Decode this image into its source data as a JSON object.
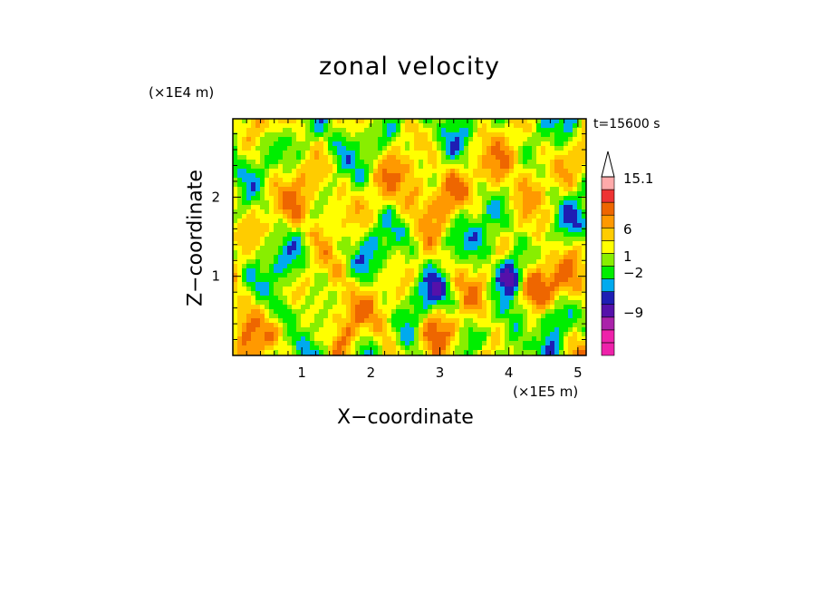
{
  "chart_data": {
    "type": "heatmap",
    "title": "zonal velocity",
    "xlabel": "X−coordinate",
    "ylabel": "Z−coordinate",
    "x_unit": "(×1E5 m)",
    "y_unit": "(×1E4 m)",
    "time_label": "t=15600 s",
    "xlim": [
      0,
      5.12
    ],
    "ylim": [
      0,
      2.99
    ],
    "x_ticks": [
      1,
      2,
      3,
      4,
      5
    ],
    "y_ticks": [
      1,
      2
    ],
    "colorbar": {
      "levels": [
        {
          "color": "#ee22aa"
        },
        {
          "color": "#ee22aa"
        },
        {
          "color": "#aa22aa"
        },
        {
          "color": "#5511aa"
        },
        {
          "color": "#1e1eb4"
        },
        {
          "color": "#00aaee"
        },
        {
          "color": "#00ee00"
        },
        {
          "color": "#88ee00"
        },
        {
          "color": "#ffff00"
        },
        {
          "color": "#ffcc00"
        },
        {
          "color": "#ff9900"
        },
        {
          "color": "#ee6600"
        },
        {
          "color": "#ee3333"
        },
        {
          "color": "#ffaaaa"
        }
      ],
      "tick_labels": [
        "15.1",
        "6",
        "1",
        "−2",
        "−9"
      ],
      "extend": "max"
    }
  }
}
